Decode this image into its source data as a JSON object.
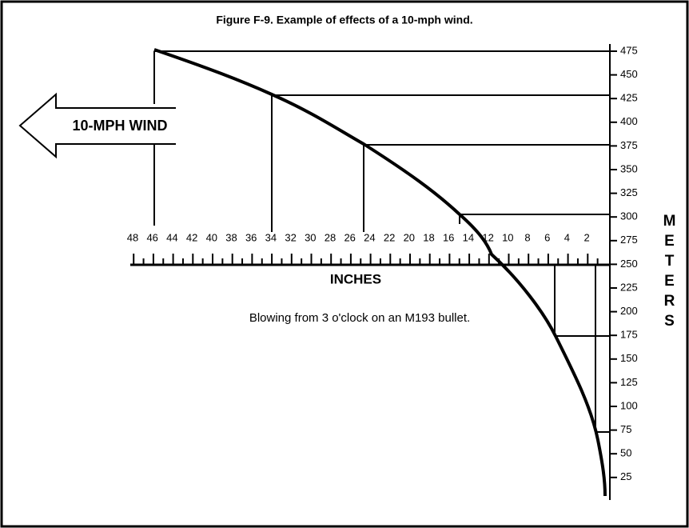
{
  "title": "Figure F-9. Example of effects of a 10-mph wind.",
  "wind_label": "10-MPH WIND",
  "inches_axis": {
    "label": "INCHES",
    "ticks": [
      48,
      46,
      44,
      42,
      40,
      38,
      36,
      34,
      32,
      30,
      28,
      26,
      24,
      22,
      20,
      18,
      16,
      14,
      12,
      10,
      8,
      6,
      4,
      2
    ]
  },
  "meters_axis": {
    "label": "METERS",
    "ticks": [
      475,
      450,
      425,
      400,
      375,
      350,
      325,
      300,
      275,
      250,
      225,
      200,
      175,
      150,
      125,
      100,
      75,
      50,
      25
    ]
  },
  "caption": "Blowing from 3 o'clock on an M193 bullet."
}
